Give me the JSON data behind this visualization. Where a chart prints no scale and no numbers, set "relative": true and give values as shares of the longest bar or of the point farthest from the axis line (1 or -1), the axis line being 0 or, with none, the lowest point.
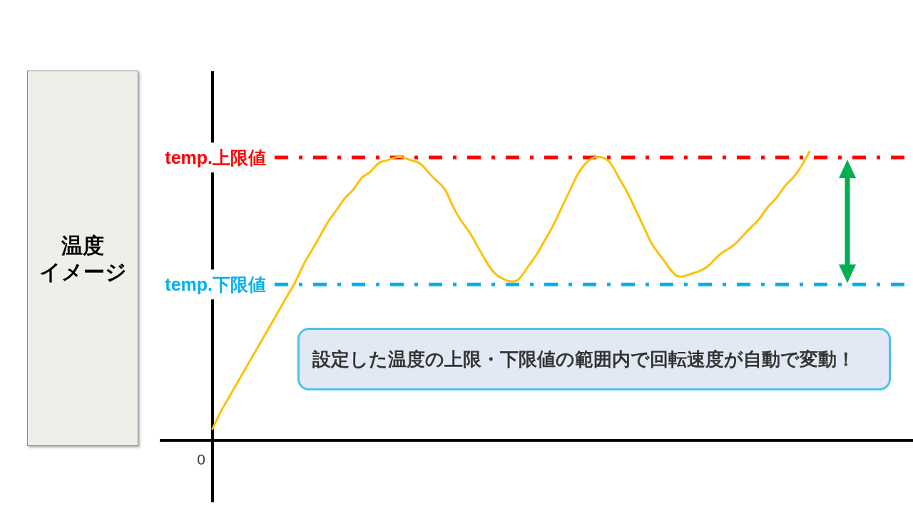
{
  "chart_data": {
    "type": "line",
    "relative": true,
    "ylabel": "温度イメージ",
    "annotations": [
      "設定した温度の上限・下限値の範囲内で回転速度が自動で変動！",
      "0"
    ],
    "categories": [
      null,
      null,
      null,
      null,
      null,
      null,
      null,
      null,
      null,
      null,
      null,
      null,
      null,
      null,
      null,
      null,
      null,
      null,
      null,
      null,
      null,
      null,
      null,
      null,
      null,
      null,
      null,
      null,
      null,
      null,
      null,
      null,
      null,
      null,
      null,
      null,
      null,
      null,
      null,
      null,
      null,
      null,
      null,
      null,
      null,
      null,
      null,
      null,
      null,
      null,
      null,
      null,
      null,
      null,
      null,
      null,
      null,
      null,
      null,
      null,
      null,
      null,
      null,
      null,
      null,
      null,
      null,
      null,
      null,
      null,
      null,
      null,
      null
    ],
    "series": [
      {
        "color": "#ffc000",
        "values": [
          0.04,
          0.1,
          0.15,
          0.2,
          0.25,
          0.3,
          0.35,
          0.4,
          0.45,
          0.5,
          0.55,
          0.61,
          0.66,
          0.71,
          0.76,
          0.8,
          0.84,
          0.87,
          0.91,
          0.93,
          0.96,
          0.97,
          0.98,
          0.98,
          0.97,
          0.96,
          0.93,
          0.9,
          0.87,
          0.81,
          0.76,
          0.72,
          0.67,
          0.62,
          0.58,
          0.56,
          0.55,
          0.56,
          0.6,
          0.64,
          0.69,
          0.74,
          0.8,
          0.86,
          0.92,
          0.96,
          0.98,
          0.98,
          0.96,
          0.91,
          0.86,
          0.8,
          0.74,
          0.68,
          0.64,
          0.6,
          0.57,
          0.57,
          0.58,
          0.59,
          0.61,
          0.64,
          0.66,
          0.68,
          0.71,
          0.74,
          0.77,
          0.81,
          0.84,
          0.88,
          0.91,
          0.95,
          1
        ]
      }
    ],
    "ref_lines": [
      {
        "axis": "y",
        "value": 0.98,
        "label": "temp.上限値",
        "color": "#ff0000",
        "line_style": "dashed"
      },
      {
        "axis": "y",
        "value": 0.54,
        "label": "temp.下限値",
        "color": "#00b0f0",
        "line_style": "dashed"
      }
    ]
  }
}
